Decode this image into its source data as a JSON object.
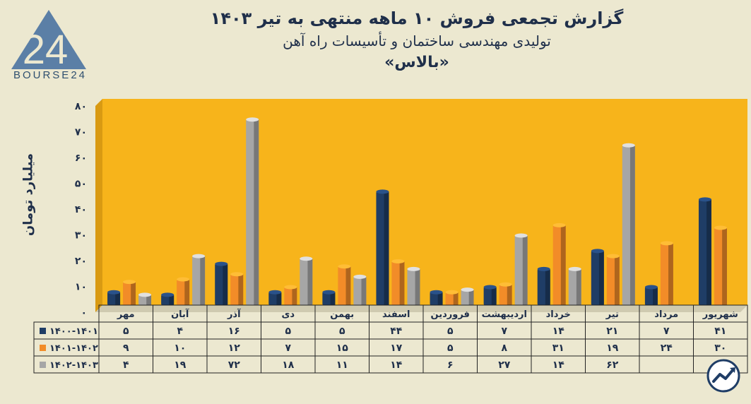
{
  "header": {
    "title": "گزارش تجمعی فروش ۱۰ ماهه منتهی به تیر ۱۴۰۳",
    "company": "تولیدی مهندسی ساختمان و تأسیسات راه آهن",
    "ticker": "«بالاس»"
  },
  "logo": {
    "text": "BOURSE24",
    "icon": "bourse24-logo"
  },
  "badge_icon": "trend-arrow-icon",
  "colors": {
    "plot_background": "#f7b41b",
    "page_background": "#ece8d0",
    "series": [
      "#1f3d66",
      "#f28c28",
      "#a6a6a6"
    ]
  },
  "chart_data": {
    "type": "bar",
    "ylabel": "میلیارد تومان",
    "ylim": [
      0,
      80
    ],
    "yticks": [
      "۰",
      "۱۰",
      "۲۰",
      "۳۰",
      "۴۰",
      "۵۰",
      "۶۰",
      "۷۰",
      "۸۰"
    ],
    "categories": [
      "مهر",
      "آبان",
      "آذر",
      "دی",
      "بهمن",
      "اسفند",
      "فروردین",
      "اردیبهشت",
      "خرداد",
      "تیر",
      "مرداد",
      "شهریور"
    ],
    "series": [
      {
        "name": "۱۴۰۰-۱۴۰۱",
        "values": [
          5,
          4,
          16,
          5,
          5,
          44,
          5,
          7,
          14,
          21,
          7,
          41
        ],
        "labels": [
          "۵",
          "۴",
          "۱۶",
          "۵",
          "۵",
          "۴۴",
          "۵",
          "۷",
          "۱۴",
          "۲۱",
          "۷",
          "۴۱"
        ]
      },
      {
        "name": "۱۴۰۱-۱۴۰۲",
        "values": [
          9,
          10,
          12,
          7,
          15,
          17,
          5,
          8,
          31,
          19,
          24,
          30
        ],
        "labels": [
          "۹",
          "۱۰",
          "۱۲",
          "۷",
          "۱۵",
          "۱۷",
          "۵",
          "۸",
          "۳۱",
          "۱۹",
          "۲۴",
          "۳۰"
        ]
      },
      {
        "name": "۱۴۰۲-۱۴۰۳",
        "values": [
          4,
          19,
          72,
          18,
          11,
          14,
          6,
          27,
          14,
          62,
          null,
          null
        ],
        "labels": [
          "۴",
          "۱۹",
          "۷۲",
          "۱۸",
          "۱۱",
          "۱۴",
          "۶",
          "۲۷",
          "۱۴",
          "۶۲",
          "",
          ""
        ]
      }
    ],
    "legend": "data-table-left",
    "grid": false
  }
}
